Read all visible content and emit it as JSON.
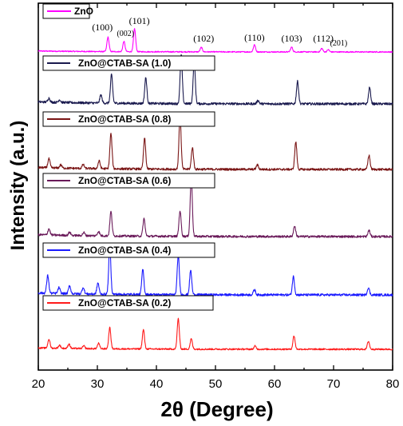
{
  "chart_data": {
    "type": "line",
    "xlabel": "2θ (Degree)",
    "ylabel": "Intensity (a.u.)",
    "xlim": [
      20,
      80
    ],
    "xticks": [
      "20",
      "30",
      "40",
      "50",
      "60",
      "70",
      "80"
    ],
    "y_ticks_shown": false,
    "legend_placement": "stacked boxes at the top-left of each trace",
    "series": [
      {
        "name": "ZnO",
        "color": "#ff00ff",
        "peaks": [
          [
            31.8,
            0.45
          ],
          [
            34.5,
            0.32
          ],
          [
            36.3,
            0.72
          ],
          [
            47.6,
            0.14
          ],
          [
            56.6,
            0.22
          ],
          [
            62.9,
            0.15
          ],
          [
            68.0,
            0.11
          ],
          [
            69.1,
            0.07
          ]
        ]
      },
      {
        "name": "ZnO@CTAB-SA (1.0)",
        "color": "#1a1a4e",
        "peaks": [
          [
            21.8,
            0.06
          ],
          [
            23.6,
            0.04
          ],
          [
            30.6,
            0.12
          ],
          [
            32.4,
            0.42
          ],
          [
            38.2,
            0.38
          ],
          [
            44.2,
            0.72
          ],
          [
            46.4,
            0.62
          ],
          [
            57.2,
            0.05
          ],
          [
            63.9,
            0.33
          ],
          [
            76.1,
            0.24
          ]
        ]
      },
      {
        "name": "ZnO@CTAB-SA (0.8)",
        "color": "#7a1515",
        "peaks": [
          [
            21.8,
            0.14
          ],
          [
            23.8,
            0.05
          ],
          [
            27.6,
            0.06
          ],
          [
            30.3,
            0.12
          ],
          [
            32.3,
            0.55
          ],
          [
            38.0,
            0.48
          ],
          [
            44.0,
            0.82
          ],
          [
            46.1,
            0.34
          ],
          [
            57.1,
            0.07
          ],
          [
            63.6,
            0.43
          ],
          [
            76.0,
            0.22
          ]
        ]
      },
      {
        "name": "ZnO@CTAB-SA (0.6)",
        "color": "#6a1a5a",
        "peaks": [
          [
            21.8,
            0.1
          ],
          [
            25.3,
            0.05
          ],
          [
            27.7,
            0.05
          ],
          [
            30.2,
            0.07
          ],
          [
            32.3,
            0.39
          ],
          [
            37.9,
            0.28
          ],
          [
            44.0,
            0.41
          ],
          [
            45.9,
            0.95
          ],
          [
            63.4,
            0.17
          ],
          [
            76.0,
            0.1
          ]
        ]
      },
      {
        "name": "ZnO@CTAB-SA (0.4)",
        "color": "#1a1aff",
        "peaks": [
          [
            21.6,
            0.27
          ],
          [
            23.5,
            0.09
          ],
          [
            25.3,
            0.12
          ],
          [
            27.6,
            0.1
          ],
          [
            30.1,
            0.17
          ],
          [
            32.1,
            0.72
          ],
          [
            37.7,
            0.38
          ],
          [
            43.7,
            0.6
          ],
          [
            45.8,
            0.37
          ],
          [
            56.6,
            0.08
          ],
          [
            63.2,
            0.28
          ],
          [
            75.9,
            0.11
          ]
        ]
      },
      {
        "name": "ZnO@CTAB-SA (0.2)",
        "color": "#ff1a1a",
        "peaks": [
          [
            21.8,
            0.2
          ],
          [
            23.6,
            0.07
          ],
          [
            25.2,
            0.1
          ],
          [
            27.7,
            0.06
          ],
          [
            30.2,
            0.12
          ],
          [
            32.1,
            0.47
          ],
          [
            37.8,
            0.43
          ],
          [
            43.7,
            0.68
          ],
          [
            45.9,
            0.23
          ],
          [
            56.7,
            0.07
          ],
          [
            63.3,
            0.3
          ],
          [
            75.9,
            0.18
          ]
        ]
      }
    ],
    "annotations": [
      {
        "text": "(100)",
        "x": 31.8
      },
      {
        "text": "(002)",
        "x": 34.5
      },
      {
        "text": "(101)",
        "x": 36.3
      },
      {
        "text": "(102)",
        "x": 47.6
      },
      {
        "text": "(110)",
        "x": 56.6
      },
      {
        "text": "(103)",
        "x": 62.9
      },
      {
        "text": "(112)",
        "x": 68.0
      },
      {
        "text": "(201)",
        "x": 69.1
      }
    ]
  }
}
